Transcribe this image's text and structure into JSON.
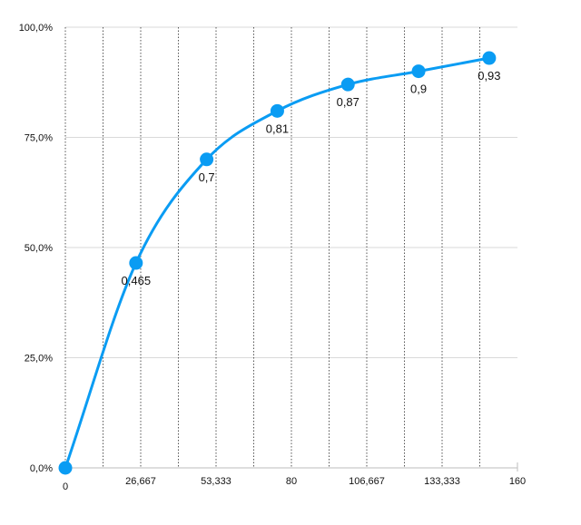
{
  "chart_data": {
    "type": "line",
    "title": "",
    "xlabel": "",
    "ylabel": "",
    "xlim": [
      0,
      160
    ],
    "ylim": [
      0,
      1
    ],
    "x_ticks": [
      {
        "value": 0,
        "label": "0"
      },
      {
        "value": 26.667,
        "label": "26,667"
      },
      {
        "value": 53.333,
        "label": "53,333"
      },
      {
        "value": 80,
        "label": "80"
      },
      {
        "value": 106.667,
        "label": "106,667"
      },
      {
        "value": 133.333,
        "label": "133,333"
      },
      {
        "value": 160,
        "label": "160"
      }
    ],
    "y_ticks": [
      {
        "value": 0,
        "label": "0,0%"
      },
      {
        "value": 0.25,
        "label": "25,0%"
      },
      {
        "value": 0.5,
        "label": "50,0%"
      },
      {
        "value": 0.75,
        "label": "75,0%"
      },
      {
        "value": 1.0,
        "label": "100,0%"
      }
    ],
    "vertical_gridlines_at": [
      13.333,
      26.667,
      40,
      53.333,
      66.667,
      80,
      93.333,
      106.667,
      120,
      133.333,
      146.667
    ],
    "grid": true,
    "smooth": true,
    "color": "#0a9cf3",
    "series": [
      {
        "points": [
          {
            "x": 0,
            "y": 0,
            "label": ""
          },
          {
            "x": 25,
            "y": 0.465,
            "label": "0,465"
          },
          {
            "x": 50,
            "y": 0.7,
            "label": "0,7"
          },
          {
            "x": 75,
            "y": 0.81,
            "label": "0,81"
          },
          {
            "x": 100,
            "y": 0.87,
            "label": "0,87"
          },
          {
            "x": 125,
            "y": 0.9,
            "label": "0,9"
          },
          {
            "x": 150,
            "y": 0.93,
            "label": "0,93"
          }
        ]
      }
    ]
  }
}
